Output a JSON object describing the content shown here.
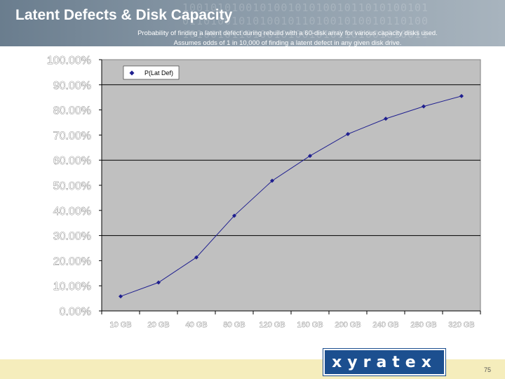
{
  "header": {
    "title": "Latent Defects & Disk Capacity",
    "subtitle_line1": "Probability of finding a latent defect during rebuild with a 60-disk array for various capacity disks used.",
    "subtitle_line2": "Assumes odds of 1 in 10,000 of finding a latent defect in any given disk drive."
  },
  "chart_data": {
    "type": "line",
    "categories": [
      "10 GB",
      "20 GB",
      "40 GB",
      "80 GB",
      "120 GB",
      "160 GB",
      "200 GB",
      "240 GB",
      "280 GB",
      "320 GB"
    ],
    "series": [
      {
        "name": "P(Lat Def)",
        "values": [
          5.8,
          11.3,
          21.3,
          37.9,
          51.8,
          61.7,
          70.4,
          76.5,
          81.4,
          85.5
        ]
      }
    ],
    "y_ticks": [
      "0.00%",
      "10.00%",
      "20.00%",
      "30.00%",
      "40.00%",
      "50.00%",
      "60.00%",
      "70.00%",
      "80.00%",
      "90.00%",
      "100.00%"
    ],
    "ylim": [
      0,
      100
    ],
    "grid": "horizontal major lines at 30% intervals",
    "legend_position": "top-left",
    "line_color": "#1f1f8f",
    "plot_background": "#c0c0c0"
  },
  "footer": {
    "logo_text": "xyratex",
    "page_number": "75"
  },
  "colors": {
    "header": "#7a8c9c",
    "footer": "#f5edbc",
    "logo": "#1c4f8f"
  }
}
